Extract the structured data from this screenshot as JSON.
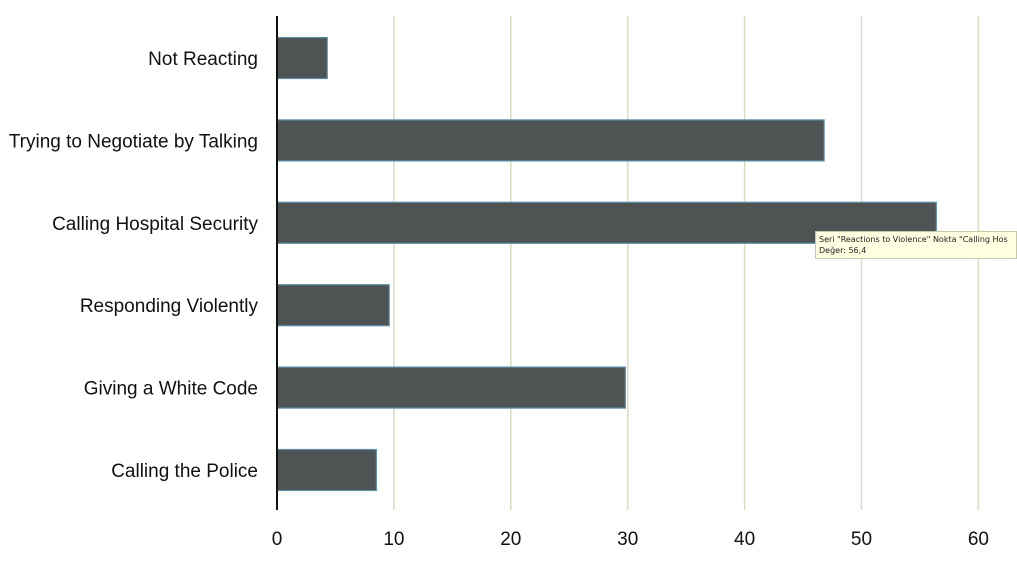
{
  "chart_data": {
    "type": "bar",
    "orientation": "horizontal",
    "categories": [
      "Not Reacting",
      "Trying to Negotiate by Talking",
      "Calling Hospital Security",
      "Responding Violently",
      "Giving a White Code",
      "Calling the Police"
    ],
    "series": [
      {
        "values": [
          4.3,
          46.8,
          56.4,
          9.6,
          29.8,
          8.5
        ]
      }
    ],
    "xlim": [
      0,
      60
    ],
    "xticks": [
      "0",
      "10",
      "20",
      "30",
      "40",
      "50",
      "60"
    ],
    "grid": "vertical",
    "colors": {
      "bar_fill": "#4e5454",
      "bar_edge": "#5b8fa8",
      "grid": "#d8dcc0",
      "axis": "#111111"
    }
  },
  "tooltip": {
    "line1": "Seri \"Reactions to Violence\" Nokta \"Calling Hos",
    "line2": "Değer: 56,4"
  }
}
